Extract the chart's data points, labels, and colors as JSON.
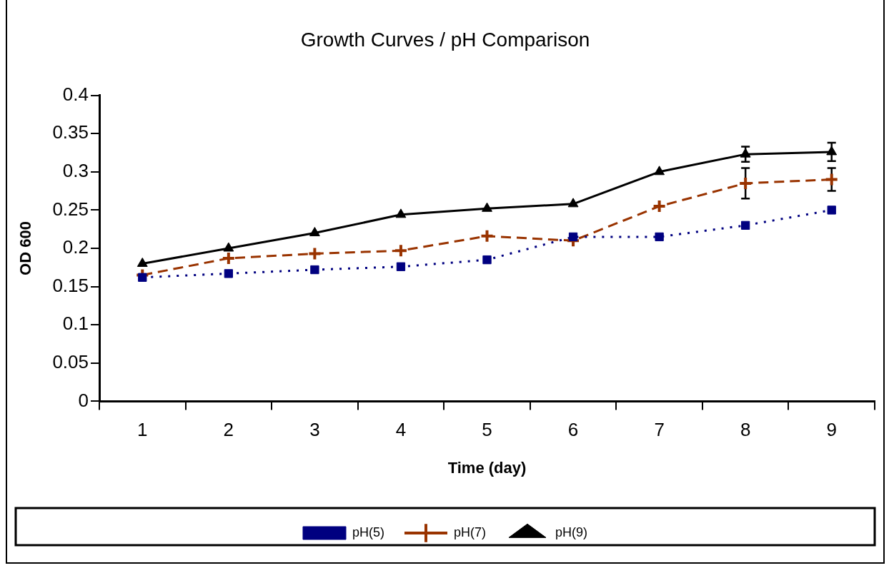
{
  "chart_data": {
    "type": "line",
    "title": "Growth Curves / pH Comparison",
    "xlabel": "Time (day)",
    "ylabel": "OD 600",
    "categories": [
      "1",
      "2",
      "3",
      "4",
      "5",
      "6",
      "7",
      "8",
      "9"
    ],
    "ylim": [
      0,
      0.4
    ],
    "yticks": [
      0,
      0.05,
      0.1,
      0.15,
      0.2,
      0.25,
      0.3,
      0.35,
      0.4
    ],
    "grid": false,
    "legend": "bottom",
    "series": [
      {
        "name": "pH(5)",
        "color": "#000080",
        "marker": "square",
        "line_style": "dotted",
        "values": [
          0.162,
          0.167,
          0.172,
          0.176,
          0.185,
          0.215,
          0.215,
          0.23,
          0.25
        ]
      },
      {
        "name": "pH(7)",
        "color": "#993300",
        "marker": "cross",
        "line_style": "dashed",
        "values": [
          0.165,
          0.187,
          0.193,
          0.197,
          0.216,
          0.21,
          0.255,
          0.285,
          0.29
        ],
        "errors": [
          null,
          null,
          null,
          null,
          null,
          null,
          null,
          0.02,
          0.015
        ]
      },
      {
        "name": "pH(9)",
        "color": "#000000",
        "marker": "triangle",
        "line_style": "solid",
        "values": [
          0.18,
          0.2,
          0.22,
          0.244,
          0.252,
          0.258,
          0.3,
          0.323,
          0.326
        ],
        "errors": [
          null,
          null,
          null,
          null,
          null,
          null,
          null,
          0.01,
          0.012
        ]
      }
    ]
  }
}
